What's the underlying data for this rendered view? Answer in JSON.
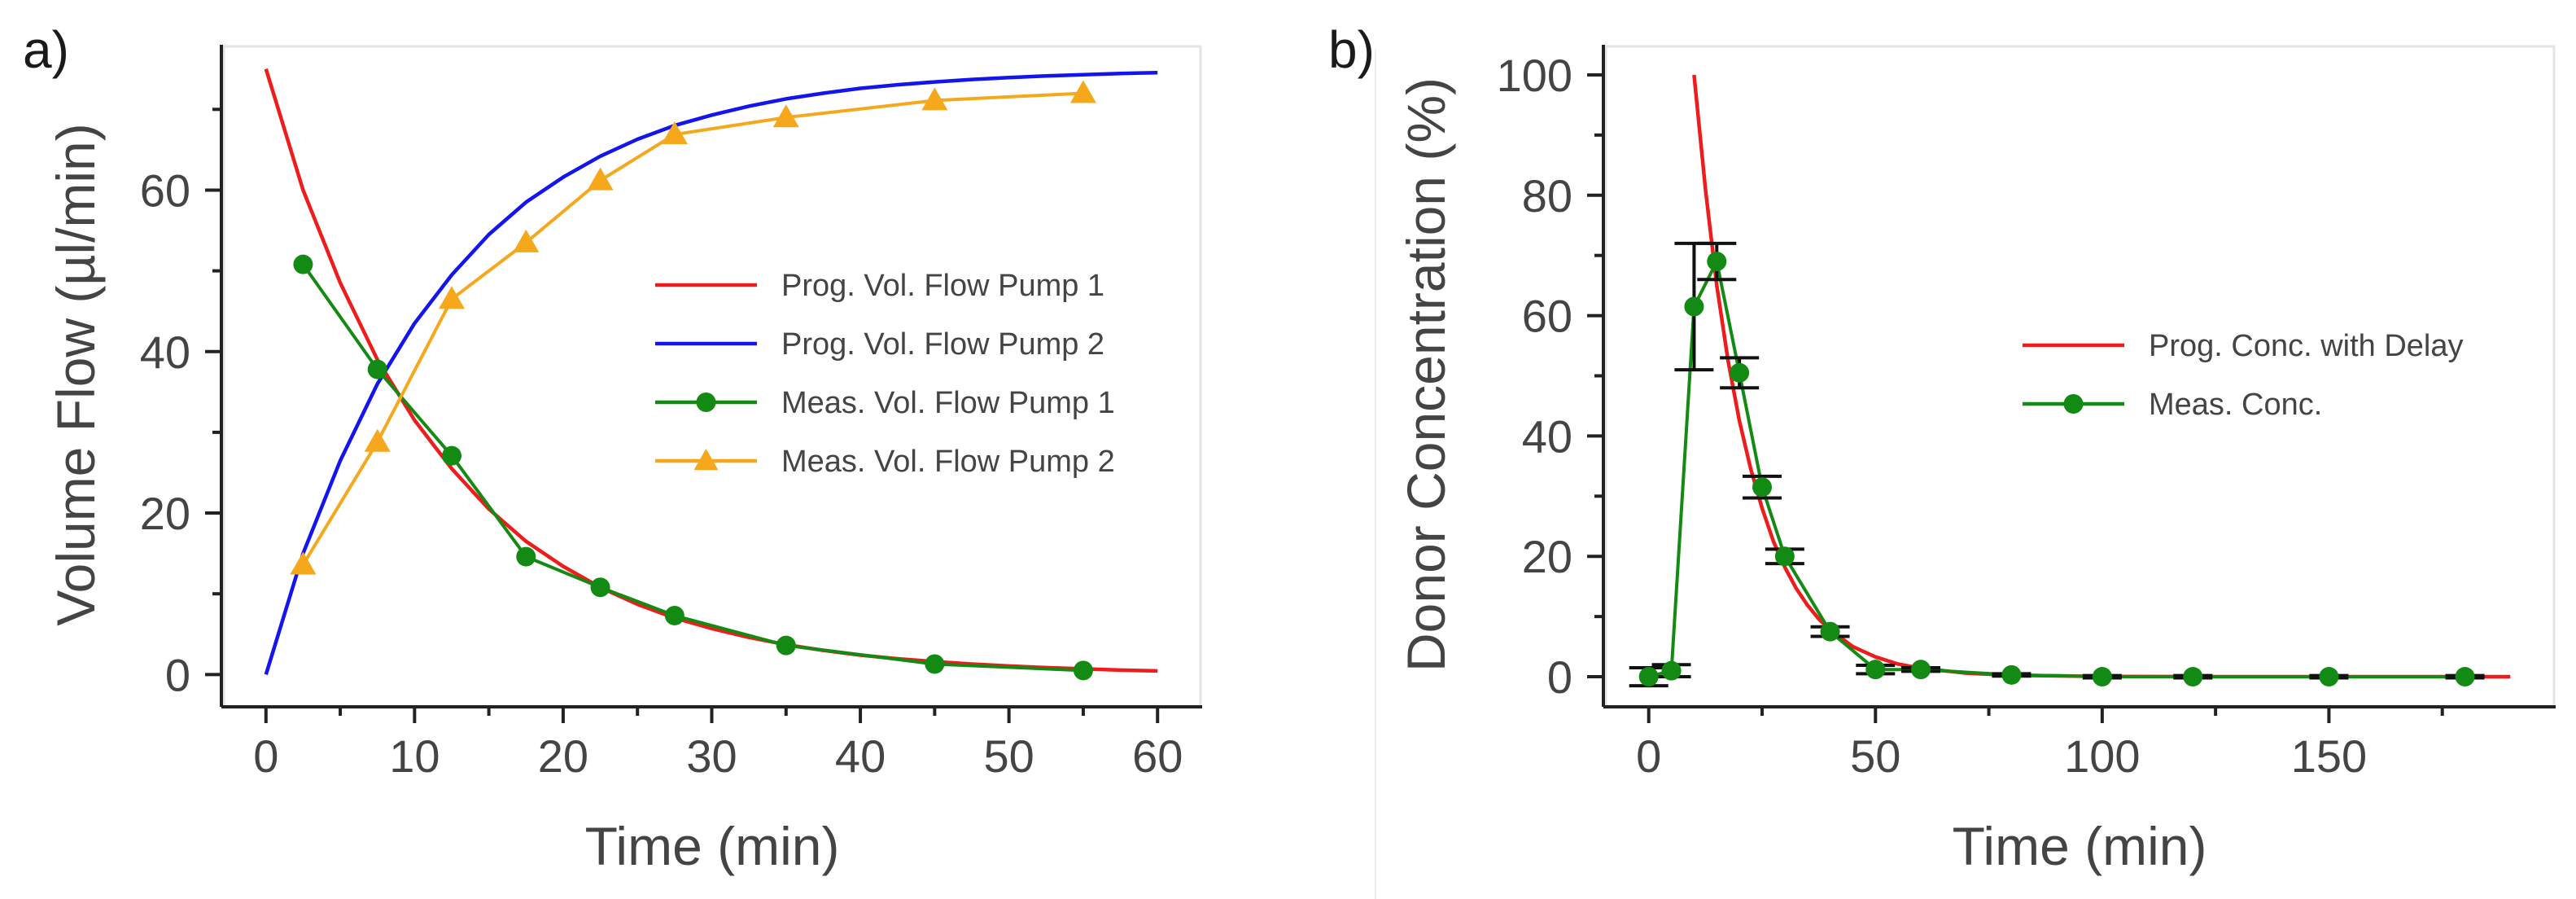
{
  "chart_data": [
    {
      "panel_label": "a)",
      "type": "line",
      "xlabel": "Time (min)",
      "ylabel": "Volume Flow (µl/min)",
      "xlim": [
        -3,
        63
      ],
      "ylim": [
        -4,
        78
      ],
      "xticks": [
        0,
        10,
        20,
        30,
        40,
        50,
        60
      ],
      "yticks": [
        0,
        20,
        40,
        60
      ],
      "grid": false,
      "legend_position": "center-right",
      "series": [
        {
          "name": "Prog. Vol. Flow Pump 1",
          "kind": "curve",
          "color": "#ee1c1c",
          "x": [
            0,
            2.5,
            5,
            7.5,
            10,
            12.5,
            15,
            17.5,
            20,
            22.5,
            25,
            27.5,
            30,
            32.5,
            35,
            37.5,
            40,
            42.5,
            45,
            47.5,
            50,
            52.5,
            55,
            57.5,
            60
          ],
          "y": [
            75,
            60,
            48.5,
            39,
            31.5,
            25.5,
            20.5,
            16.5,
            13.4,
            10.8,
            8.7,
            7,
            5.7,
            4.6,
            3.7,
            3,
            2.4,
            1.95,
            1.6,
            1.3,
            1.05,
            0.85,
            0.7,
            0.55,
            0.45
          ]
        },
        {
          "name": "Prog. Vol. Flow Pump 2",
          "kind": "curve",
          "color": "#1414ee",
          "x": [
            0,
            2.5,
            5,
            7.5,
            10,
            12.5,
            15,
            17.5,
            20,
            22.5,
            25,
            27.5,
            30,
            32.5,
            35,
            37.5,
            40,
            42.5,
            45,
            47.5,
            50,
            52.5,
            55,
            57.5,
            60
          ],
          "y": [
            0,
            15,
            26.5,
            36,
            43.5,
            49.5,
            54.5,
            58.5,
            61.6,
            64.2,
            66.3,
            68,
            69.3,
            70.4,
            71.3,
            72,
            72.6,
            73.05,
            73.4,
            73.7,
            73.95,
            74.15,
            74.3,
            74.45,
            74.55
          ]
        },
        {
          "name": "Meas. Vol. Flow Pump 1",
          "kind": "markers-line",
          "marker": "circle",
          "color": "#138a13",
          "x": [
            2.5,
            7.5,
            12.5,
            17.5,
            22.5,
            27.5,
            35,
            45,
            55
          ],
          "y": [
            50.8,
            37.8,
            27.1,
            14.6,
            10.8,
            7.3,
            3.6,
            1.3,
            0.5
          ]
        },
        {
          "name": "Meas. Vol. Flow Pump 2",
          "kind": "markers-line",
          "marker": "triangle",
          "color": "#f5a81c",
          "x": [
            2.5,
            7.5,
            12.5,
            17.5,
            22.5,
            27.5,
            35,
            45,
            55
          ],
          "y": [
            13.6,
            28.8,
            46.5,
            53.5,
            61.2,
            66.9,
            69,
            71.1,
            72
          ]
        }
      ]
    },
    {
      "panel_label": "b)",
      "type": "line",
      "xlabel": "Time (min)",
      "ylabel": "Donor Concentration (%)",
      "xlim": [
        -10,
        200
      ],
      "ylim": [
        -5,
        105
      ],
      "xticks": [
        0,
        50,
        100,
        150
      ],
      "yticks": [
        0,
        20,
        40,
        60,
        80,
        100
      ],
      "grid": false,
      "legend_position": "center-right",
      "series": [
        {
          "name": "Prog. Conc. with Delay",
          "kind": "curve",
          "color": "#ee1c1c",
          "x": [
            10,
            12.5,
            15,
            17.5,
            20,
            22.5,
            25,
            27.5,
            30,
            32.5,
            35,
            37.5,
            40,
            45,
            50,
            55,
            60,
            70,
            80,
            100,
            120,
            150,
            190
          ],
          "y": [
            100,
            81,
            65,
            52.5,
            42.5,
            34.5,
            28,
            22.5,
            18.2,
            14.7,
            11.9,
            9.6,
            7.8,
            5,
            3.3,
            2.1,
            1.4,
            0.6,
            0.25,
            0.05,
            0,
            0,
            0
          ]
        },
        {
          "name": "Meas. Conc.",
          "kind": "markers-line",
          "marker": "circle",
          "color": "#138a13",
          "x": [
            0,
            5,
            10,
            15,
            20,
            25,
            30,
            40,
            50,
            60,
            80,
            100,
            120,
            150,
            180
          ],
          "y": [
            0,
            1,
            61.5,
            69,
            50.5,
            31.5,
            20,
            7.5,
            1.2,
            1.2,
            0.3,
            0,
            0,
            0,
            0
          ],
          "error": [
            1.5,
            1,
            10.5,
            3,
            2.5,
            1.8,
            1.2,
            0.8,
            0.7,
            0.3,
            0.2,
            0.2,
            0.2,
            0.2,
            0.2
          ]
        }
      ]
    }
  ]
}
